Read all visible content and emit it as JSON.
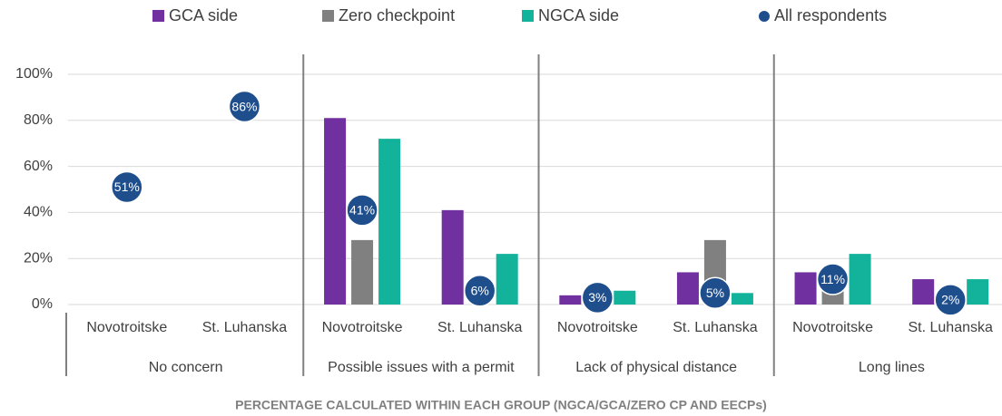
{
  "chart_data": {
    "type": "bar",
    "categories": [
      "Novotroitske",
      "St. Luhanska",
      "Novotroitske",
      "St. Luhanska",
      "Novotroitske",
      "St. Luhanska",
      "Novotroitske",
      "St. Luhanska"
    ],
    "groups": [
      "No concern",
      "Possible issues with a permit",
      "Lack of physical distance",
      "Long lines"
    ],
    "x_label": "PERCENTAGE CALCULATED WITHIN EACH GROUP (NGCA/GCA/ZERO CP AND EECPs)",
    "series": [
      {
        "name": "GCA side",
        "color": "#7030a0",
        "values": [
          null,
          null,
          81,
          41,
          4,
          14,
          14,
          11
        ]
      },
      {
        "name": "Zero checkpoint",
        "color": "#808080",
        "values": [
          null,
          null,
          28,
          0,
          3,
          28,
          8,
          0
        ]
      },
      {
        "name": "NGCA side",
        "color": "#13b39b",
        "values": [
          null,
          null,
          72,
          22,
          6,
          5,
          22,
          11
        ]
      },
      {
        "name": "All respondents",
        "type": "scatter",
        "color": "#1f4e8c",
        "values": [
          51,
          86,
          41,
          6,
          3,
          5,
          11,
          2
        ],
        "value_labels": [
          "51%",
          "86%",
          "41%",
          "6%",
          "3%",
          "5%",
          "11%",
          "2%"
        ]
      }
    ],
    "ylim": [
      0,
      100
    ],
    "yticks": [
      {
        "value": 0,
        "label": "0%"
      },
      {
        "value": 20,
        "label": "20%"
      },
      {
        "value": 40,
        "label": "40%"
      },
      {
        "value": 60,
        "label": "60%"
      },
      {
        "value": 80,
        "label": "80%"
      },
      {
        "value": 100,
        "label": "100%"
      }
    ],
    "grid": true,
    "legend": "top"
  }
}
